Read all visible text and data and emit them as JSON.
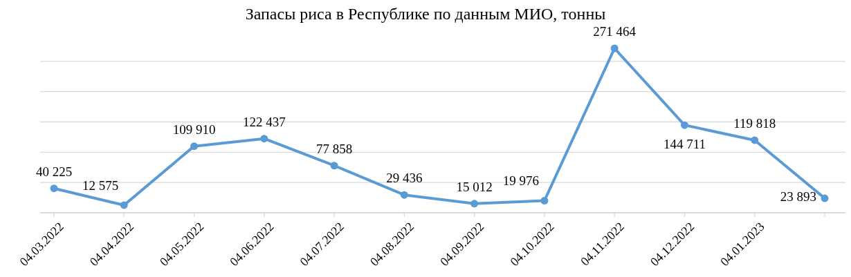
{
  "chart_data": {
    "type": "line",
    "title": "Запасы риса в Республике по данным МИО, тонны",
    "categories": [
      "04.03.2022",
      "04.04.2022",
      "04.05.2022",
      "04.06.2022",
      "04.07.2022",
      "04.08.2022",
      "04.09.2022",
      "04.10.2022",
      "04.11.2022",
      "04.12.2022",
      "04.01.2023",
      null
    ],
    "series": [
      {
        "color": "#5b9bd5",
        "values": [
          40225,
          12575,
          109910,
          122437,
          77858,
          29436,
          15012,
          19976,
          271464,
          144711,
          119818,
          23893
        ]
      }
    ],
    "yticks": [
      {
        "value": 0,
        "label": null
      },
      {
        "value": 50000,
        "label": null
      },
      {
        "value": 100000,
        "label": null
      },
      {
        "value": 150000,
        "label": null
      },
      {
        "value": 200000,
        "label": null
      },
      {
        "value": 250000,
        "label": null
      }
    ],
    "grid": "y",
    "marker": "circle",
    "line_style": "solid",
    "data_labels": true
  }
}
